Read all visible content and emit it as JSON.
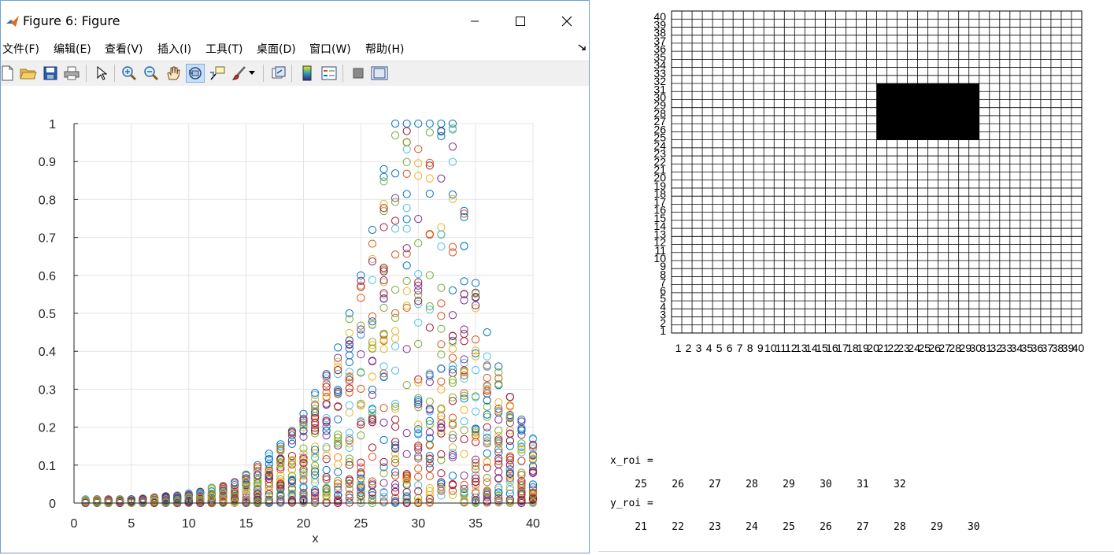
{
  "window": {
    "title": "Figure 6: Figure",
    "menu": [
      "文件(F)",
      "编辑(E)",
      "查看(V)",
      "插入(I)",
      "工具(T)",
      "桌面(D)",
      "窗口(W)",
      "帮助(H)"
    ],
    "toolbar_icons": [
      "new-figure-icon",
      "open-file-icon",
      "save-icon",
      "print-icon",
      "select-arrow-icon",
      "zoom-in-icon",
      "zoom-out-icon",
      "pan-hand-icon",
      "rotate-3d-icon",
      "data-cursor-icon",
      "brush-icon",
      "brush-dropdown-icon",
      "link-plot-icon",
      "colorbar-icon",
      "legend-icon",
      "hide-plot-tools-icon",
      "show-plot-tools-icon"
    ]
  },
  "chart_data": [
    {
      "type": "scatter",
      "description_markers": "open circles, many series (MATLAB default color order)",
      "xlabel": "x",
      "ylabel": "",
      "xlim": [
        0,
        40
      ],
      "ylim": [
        0,
        1
      ],
      "xticks": [
        0,
        5,
        10,
        15,
        20,
        25,
        30,
        35,
        40
      ],
      "yticks": [
        0,
        0.1,
        0.2,
        0.3,
        0.4,
        0.5,
        0.6,
        0.7,
        0.8,
        0.9,
        1
      ],
      "ytick_labels": [
        "0",
        "0.1",
        "0.2",
        "0.3",
        "0.4",
        "0.5",
        "0.6",
        "0.7",
        "0.8",
        "0.9",
        "1"
      ],
      "grid": true,
      "series_colors": [
        "#0072BD",
        "#D95319",
        "#EDB120",
        "#7E2F8E",
        "#77AC30",
        "#4DBEEE",
        "#A2142F"
      ],
      "x": [
        1,
        2,
        3,
        4,
        5,
        6,
        7,
        8,
        9,
        10,
        11,
        12,
        13,
        14,
        15,
        16,
        17,
        18,
        19,
        20,
        21,
        22,
        23,
        24,
        25,
        26,
        27,
        28,
        29,
        30,
        31,
        32,
        33,
        34,
        35,
        36,
        37,
        38,
        39,
        40
      ],
      "column_max": [
        0.01,
        0.01,
        0.01,
        0.01,
        0.01,
        0.012,
        0.015,
        0.018,
        0.02,
        0.025,
        0.03,
        0.04,
        0.045,
        0.055,
        0.075,
        0.1,
        0.13,
        0.155,
        0.19,
        0.235,
        0.29,
        0.34,
        0.41,
        0.5,
        0.6,
        0.72,
        0.88,
        1.0,
        1.0,
        1.0,
        1.0,
        1.0,
        1.0,
        0.77,
        0.58,
        0.45,
        0.36,
        0.28,
        0.22,
        0.17
      ],
      "markers_per_column": 40
    },
    {
      "type": "heatmap",
      "description": "40x40 binary grid, filled black region",
      "xticks": [
        1,
        2,
        3,
        4,
        5,
        6,
        7,
        8,
        9,
        10,
        11,
        12,
        13,
        14,
        15,
        16,
        17,
        18,
        19,
        20,
        21,
        22,
        23,
        24,
        25,
        26,
        27,
        28,
        29,
        30,
        31,
        32,
        33,
        34,
        35,
        36,
        37,
        38,
        39,
        40
      ],
      "yticks": [
        1,
        2,
        3,
        4,
        5,
        6,
        7,
        8,
        9,
        10,
        11,
        12,
        13,
        14,
        15,
        16,
        17,
        18,
        19,
        20,
        21,
        22,
        23,
        24,
        25,
        26,
        27,
        28,
        29,
        30,
        31,
        32,
        33,
        34,
        35,
        36,
        37,
        38,
        39,
        40
      ],
      "xlim": [
        1,
        40
      ],
      "ylim": [
        1,
        40
      ],
      "filled_region": {
        "x_from": 21,
        "x_to": 31,
        "y_from": 25,
        "y_to": 32
      },
      "fill_color": "#000000",
      "grid_color": "#000000"
    }
  ],
  "console": {
    "x_label": "x_roi =",
    "x_values": "    25    26    27    28    29    30    31    32",
    "y_label": "y_roi =",
    "y_values": "    21    22    23    24    25    26    27    28    29    30"
  }
}
